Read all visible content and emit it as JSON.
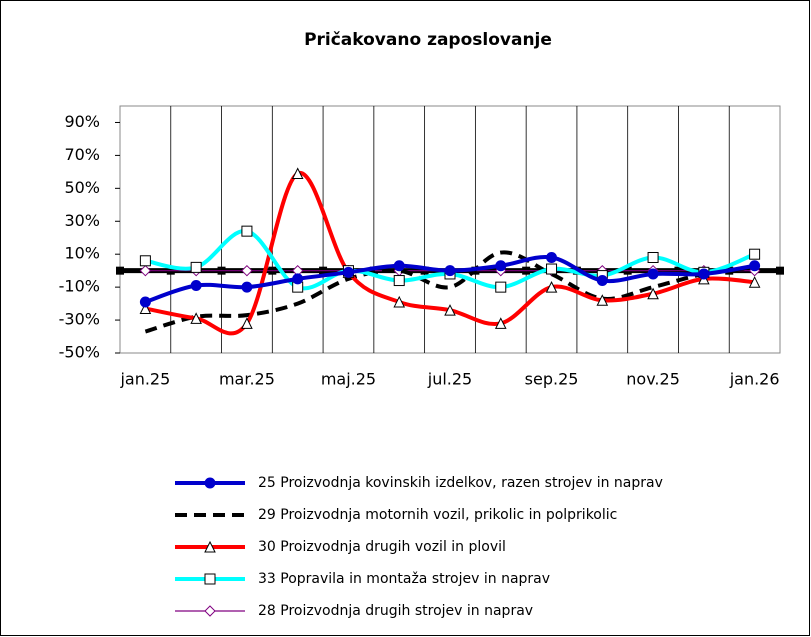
{
  "chart_data": {
    "type": "line",
    "title": "Pričakovano zaposlovanje",
    "categories": [
      "jan.25",
      null,
      "mar.25",
      null,
      "maj.25",
      null,
      "jul.25",
      null,
      "sep.25",
      null,
      "nov.25",
      null,
      "jan.26"
    ],
    "ylim": [
      -50,
      100
    ],
    "yticks": [
      {
        "value": -50,
        "label": "-50%"
      },
      {
        "value": -30,
        "label": "-30%"
      },
      {
        "value": -10,
        "label": "-10%"
      },
      {
        "value": 10,
        "label": "10%"
      },
      {
        "value": 30,
        "label": "30%"
      },
      {
        "value": 50,
        "label": "50%"
      },
      {
        "value": 70,
        "label": "70%"
      },
      {
        "value": 90,
        "label": "90%"
      }
    ],
    "grid": true,
    "legend": "bottom",
    "series": [
      {
        "name": "25 Proizvodnja kovinskih izdelkov, razen strojev in naprav",
        "color": "#0000cc",
        "marker": "circle",
        "dash": false,
        "values": [
          -19,
          -9,
          -10,
          -5,
          -1,
          3,
          0,
          3,
          8,
          -6,
          -2,
          -2,
          3
        ]
      },
      {
        "name": "29 Proizvodnja motornih vozil, prikolic in polprikolic",
        "color": "#000000",
        "marker": "none",
        "dash": true,
        "values": [
          -37,
          -28,
          -27,
          -20,
          -5,
          0,
          -10,
          11,
          -2,
          -17,
          -10,
          -2,
          2
        ]
      },
      {
        "name": "30 Proizvodnja drugih vozil in plovil",
        "color": "#ff0000",
        "marker": "triangle",
        "dash": false,
        "values": [
          -23,
          -29,
          -32,
          59,
          -1,
          -19,
          -24,
          -32,
          -10,
          -18,
          -14,
          -5,
          -7
        ]
      },
      {
        "name": "33 Popravila in montaža strojev in naprav",
        "color": "#00ffff",
        "marker": "square",
        "dash": false,
        "values": [
          6,
          2,
          24,
          -10,
          0,
          -6,
          -2,
          -10,
          1,
          -3,
          8,
          -1,
          10
        ]
      },
      {
        "name": "28 Proizvodnja drugih strojev in naprav",
        "color": "#800080",
        "marker": "diamond",
        "dash": false,
        "values": [
          0,
          0,
          0,
          0,
          0,
          0,
          0,
          0,
          0,
          0,
          0,
          0,
          0
        ]
      }
    ]
  }
}
